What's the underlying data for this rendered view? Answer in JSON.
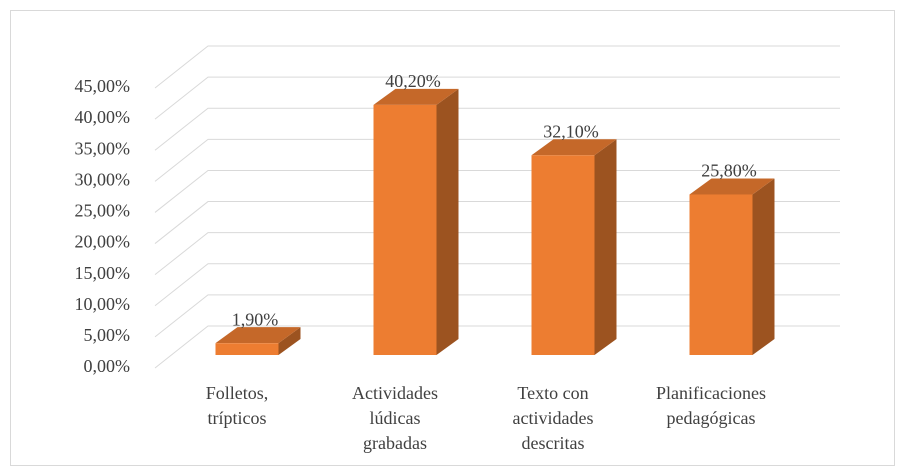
{
  "chart_data": {
    "type": "bar3d",
    "categories": [
      "Folletos, trípticos",
      "Actividades lúdicas grabadas",
      "Texto con actividades descritas",
      "Planificaciones pedagógicas"
    ],
    "values": [
      1.9,
      40.2,
      32.1,
      25.8
    ],
    "value_labels": [
      "1,90%",
      "40,20%",
      "32,10%",
      "25,80%"
    ],
    "color": "#ed7d31",
    "ylim": [
      0,
      45
    ],
    "yticks": [
      {
        "value": 0,
        "label": "0,00%"
      },
      {
        "value": 5,
        "label": "5,00%"
      },
      {
        "value": 10,
        "label": "10,00%"
      },
      {
        "value": 15,
        "label": "15,00%"
      },
      {
        "value": 20,
        "label": "20,00%"
      },
      {
        "value": 25,
        "label": "25,00%"
      },
      {
        "value": 30,
        "label": "30,00%"
      },
      {
        "value": 35,
        "label": "35,00%"
      },
      {
        "value": 40,
        "label": "40,00%"
      },
      {
        "value": 45,
        "label": "45,00%"
      }
    ],
    "grid": true
  }
}
